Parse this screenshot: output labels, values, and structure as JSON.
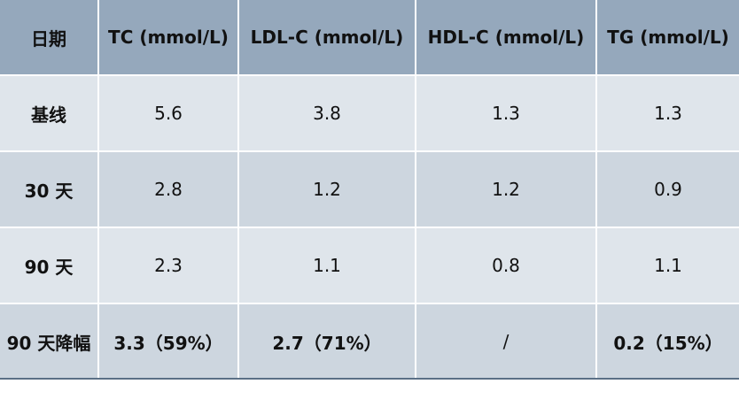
{
  "table": {
    "headers": [
      "日期",
      "TC (mmol/L)",
      "LDL-C (mmol/L)",
      "HDL-C (mmol/L)",
      "TG (mmol/L)"
    ],
    "rows": [
      [
        "基线",
        "5.6",
        "3.8",
        "1.3",
        "1.3"
      ],
      [
        "30 天",
        "2.8",
        "1.2",
        "1.2",
        "0.9"
      ],
      [
        "90 天",
        "2.3",
        "1.1",
        "0.8",
        "1.1"
      ],
      [
        "90 天降幅",
        "3.3（59%）",
        "2.7（71%）",
        "/",
        "0.2（15%）"
      ]
    ]
  },
  "colors": {
    "header_bg": "#95a8bc",
    "row_light": "#dfe5eb",
    "row_dark": "#cdd6df",
    "bottom_rule": "#5a6f86"
  }
}
